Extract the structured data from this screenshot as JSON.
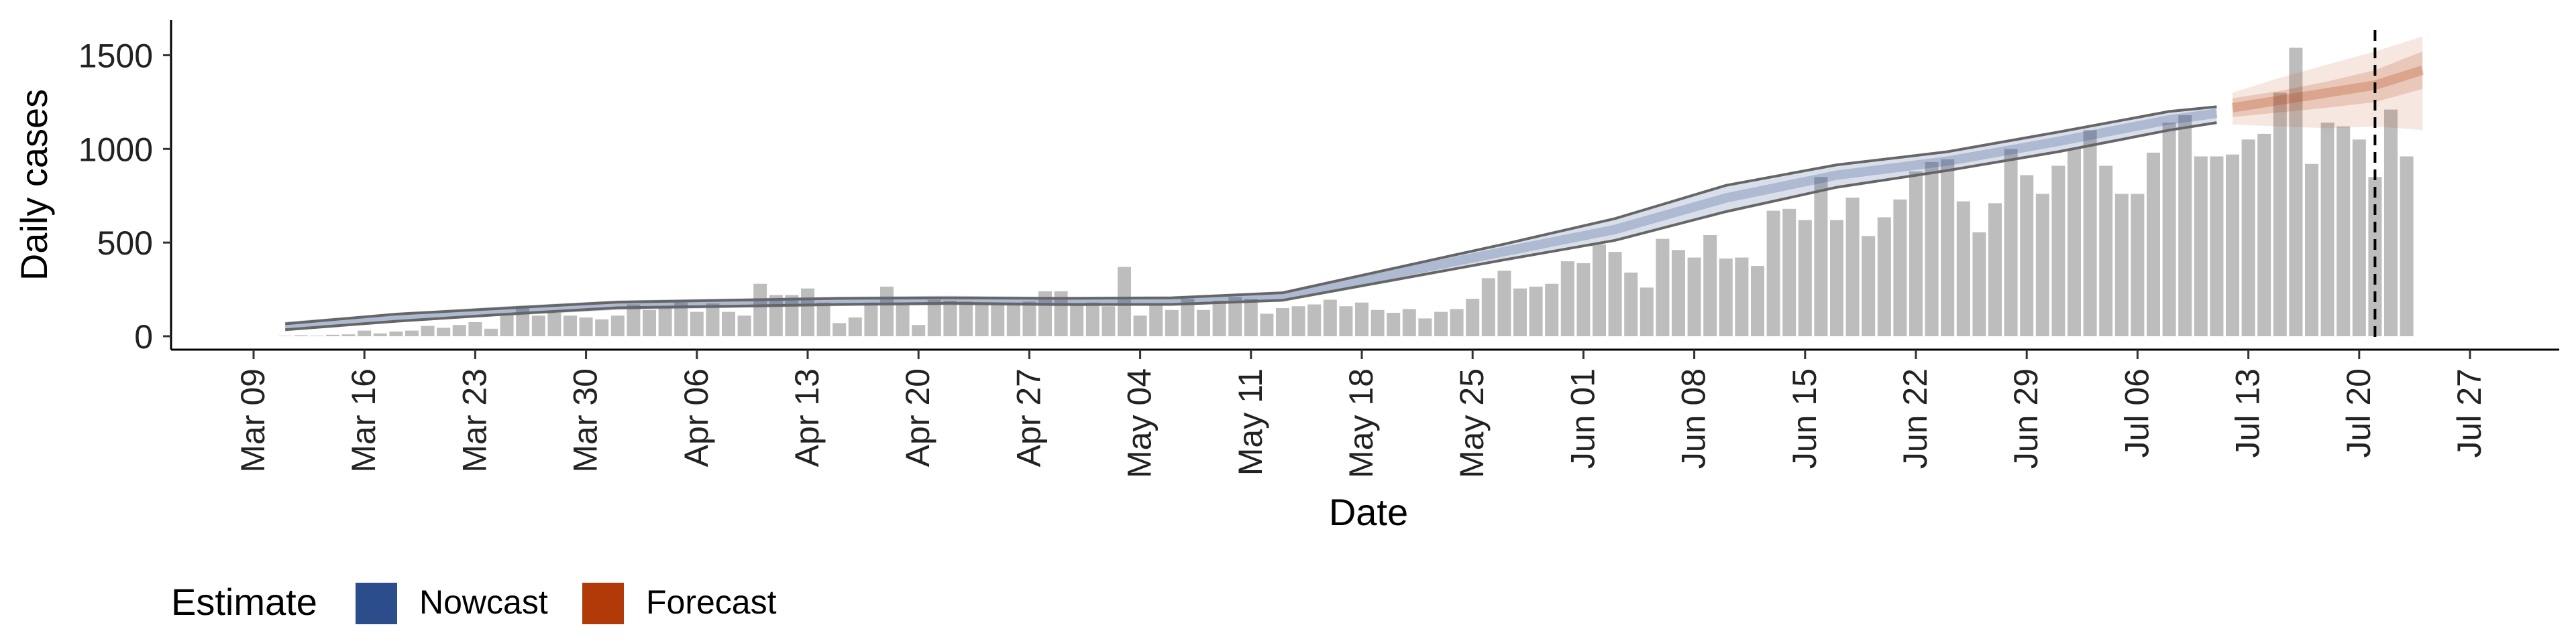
{
  "chart_data": {
    "type": "bar",
    "x_start": "2020-03-11",
    "x_end": "2020-07-21",
    "xlabel": "Date",
    "ylabel": "Daily cases",
    "ylim": [
      -75,
      1680
    ],
    "yticks": [
      0,
      500,
      1000,
      1500
    ],
    "xticks": [
      {
        "date": "2020-03-09",
        "label": "Mar 09"
      },
      {
        "date": "2020-03-16",
        "label": "Mar 16"
      },
      {
        "date": "2020-03-23",
        "label": "Mar 23"
      },
      {
        "date": "2020-03-30",
        "label": "Mar 30"
      },
      {
        "date": "2020-04-06",
        "label": "Apr 06"
      },
      {
        "date": "2020-04-13",
        "label": "Apr 13"
      },
      {
        "date": "2020-04-20",
        "label": "Apr 20"
      },
      {
        "date": "2020-04-27",
        "label": "Apr 27"
      },
      {
        "date": "2020-05-04",
        "label": "May 04"
      },
      {
        "date": "2020-05-11",
        "label": "May 11"
      },
      {
        "date": "2020-05-18",
        "label": "May 18"
      },
      {
        "date": "2020-05-25",
        "label": "May 25"
      },
      {
        "date": "2020-06-01",
        "label": "Jun 01"
      },
      {
        "date": "2020-06-08",
        "label": "Jun 08"
      },
      {
        "date": "2020-06-15",
        "label": "Jun 15"
      },
      {
        "date": "2020-06-22",
        "label": "Jun 22"
      },
      {
        "date": "2020-06-29",
        "label": "Jun 29"
      },
      {
        "date": "2020-07-06",
        "label": "Jul 06"
      },
      {
        "date": "2020-07-13",
        "label": "Jul 13"
      },
      {
        "date": "2020-07-20",
        "label": "Jul 20"
      },
      {
        "date": "2020-07-27",
        "label": "Jul 27"
      }
    ],
    "daily_cases": [
      2,
      5,
      3,
      8,
      10,
      30,
      15,
      25,
      30,
      55,
      45,
      60,
      75,
      40,
      120,
      150,
      110,
      125,
      110,
      100,
      90,
      110,
      170,
      140,
      150,
      180,
      130,
      175,
      130,
      110,
      280,
      220,
      220,
      255,
      180,
      70,
      100,
      180,
      265,
      180,
      60,
      195,
      190,
      185,
      175,
      175,
      175,
      185,
      240,
      240,
      170,
      180,
      160,
      370,
      110,
      175,
      140,
      200,
      140,
      190,
      210,
      200,
      120,
      150,
      160,
      170,
      195,
      160,
      180,
      140,
      125,
      145,
      95,
      130,
      145,
      200,
      310,
      350,
      255,
      265,
      280,
      400,
      390,
      490,
      450,
      340,
      260,
      520,
      460,
      420,
      540,
      415,
      420,
      375,
      670,
      680,
      620,
      850,
      620,
      740,
      535,
      635,
      730,
      880,
      930,
      945,
      720,
      555,
      710,
      1000,
      860,
      760,
      910,
      1000,
      1100,
      910,
      760,
      760,
      980,
      1140,
      1180,
      960,
      960,
      970,
      1050,
      1080,
      1300,
      1540,
      920,
      1140,
      1120,
      1050,
      850,
      1210,
      960
    ],
    "series": [
      {
        "name": "Nowcast",
        "color": "#2b4d8c",
        "dates": [
          "2020-03-11",
          "2020-03-18",
          "2020-03-25",
          "2020-04-01",
          "2020-04-08",
          "2020-04-15",
          "2020-04-22",
          "2020-04-29",
          "2020-05-06",
          "2020-05-13",
          "2020-05-20",
          "2020-05-27",
          "2020-06-03",
          "2020-06-10",
          "2020-06-17",
          "2020-06-24",
          "2020-07-01",
          "2020-07-08",
          "2020-07-11"
        ],
        "median": [
          52,
          98,
          135,
          166,
          176,
          186,
          191,
          185,
          188,
          212,
          333,
          452,
          570,
          738,
          860,
          935,
          1040,
          1155,
          1190
        ],
        "lower": [
          35,
          80,
          118,
          152,
          160,
          170,
          176,
          170,
          170,
          192,
          300,
          408,
          512,
          665,
          795,
          885,
          985,
          1100,
          1140
        ],
        "upper": [
          66,
          118,
          150,
          182,
          192,
          202,
          205,
          202,
          205,
          232,
          362,
          492,
          628,
          805,
          915,
          985,
          1090,
          1200,
          1225
        ]
      },
      {
        "name": "Forecast",
        "color": "#b23a08",
        "dates": [
          "2020-07-12",
          "2020-07-15",
          "2020-07-18",
          "2020-07-21",
          "2020-07-24"
        ],
        "median": [
          1220,
          1260,
          1300,
          1340,
          1420
        ],
        "lower50": [
          1170,
          1195,
          1220,
          1250,
          1320
        ],
        "upper50": [
          1270,
          1310,
          1360,
          1420,
          1520
        ],
        "lower90": [
          1130,
          1120,
          1110,
          1120,
          1100
        ],
        "upper90": [
          1300,
          1380,
          1450,
          1520,
          1600
        ]
      }
    ],
    "vline_date": "2020-07-21",
    "legend": {
      "title": "Estimate",
      "position": "bottom-left",
      "items": [
        {
          "label": "Nowcast",
          "color": "#2b4d8c"
        },
        {
          "label": "Forecast",
          "color": "#b23a08"
        }
      ]
    },
    "grid": false
  }
}
